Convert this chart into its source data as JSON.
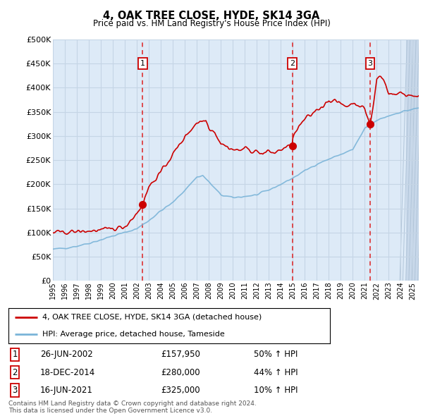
{
  "title": "4, OAK TREE CLOSE, HYDE, SK14 3GA",
  "subtitle": "Price paid vs. HM Land Registry's House Price Index (HPI)",
  "background_color": "#ddeaf7",
  "fig_bg_color": "#ffffff",
  "ylim": [
    0,
    500000
  ],
  "yticks": [
    0,
    50000,
    100000,
    150000,
    200000,
    250000,
    300000,
    350000,
    400000,
    450000,
    500000
  ],
  "ytick_labels": [
    "£0",
    "£50K",
    "£100K",
    "£150K",
    "£200K",
    "£250K",
    "£300K",
    "£350K",
    "£400K",
    "£450K",
    "£500K"
  ],
  "xlim_start": 1995.0,
  "xlim_end": 2025.5,
  "hatch_start": 2024.42,
  "sale_dates": [
    2002.48,
    2014.96,
    2021.45
  ],
  "sale_prices": [
    157950,
    280000,
    325000
  ],
  "sale_labels": [
    "1",
    "2",
    "3"
  ],
  "legend_line1": "4, OAK TREE CLOSE, HYDE, SK14 3GA (detached house)",
  "legend_line2": "HPI: Average price, detached house, Tameside",
  "table_rows": [
    [
      "1",
      "26-JUN-2002",
      "£157,950",
      "50% ↑ HPI"
    ],
    [
      "2",
      "18-DEC-2014",
      "£280,000",
      "44% ↑ HPI"
    ],
    [
      "3",
      "16-JUN-2021",
      "£325,000",
      "10% ↑ HPI"
    ]
  ],
  "footer": "Contains HM Land Registry data © Crown copyright and database right 2024.\nThis data is licensed under the Open Government Licence v3.0.",
  "red_color": "#cc0000",
  "hpi_color": "#7ab4d8",
  "grid_color": "#c5d5e5",
  "dashed_line_color": "#dd2222"
}
